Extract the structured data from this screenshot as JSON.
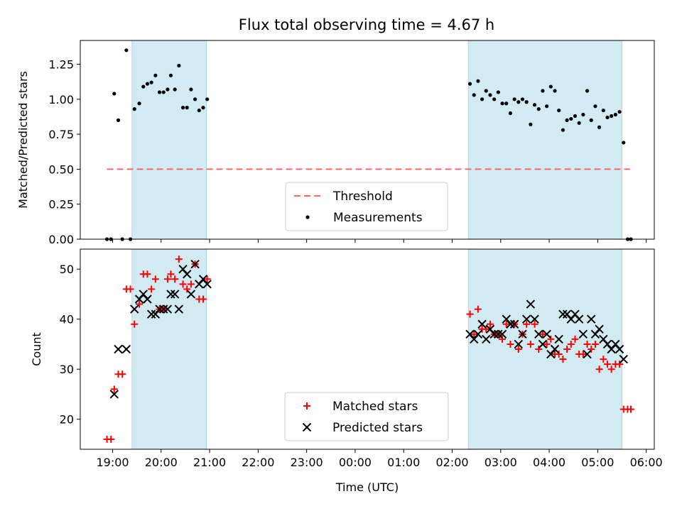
{
  "chart_data": [
    {
      "type": "scatter",
      "title": "Flux total observing time = 4.67 h",
      "ylabel": "Matched/Predicted stars",
      "xlabel": "",
      "ylim": [
        0,
        1.42
      ],
      "xlim": [
        "18:20",
        "06:10"
      ],
      "x_unit": "time (UTC), hours after 00:00; values after midnight are next day",
      "yticks": [
        "0.00",
        "0.25",
        "0.50",
        "0.75",
        "1.00",
        "1.25"
      ],
      "grid": false,
      "legend_position": "bottom-center",
      "shaded_regions": [
        {
          "start": "19:24",
          "end": "20:56",
          "color": "#add8e6"
        },
        {
          "start": "02:20",
          "end": "05:30",
          "color": "#add8e6"
        }
      ],
      "threshold": {
        "name": "Threshold",
        "value": 0.5,
        "start": "18:53",
        "end": "05:40",
        "color": "#ff6666",
        "style": "dashed"
      },
      "series": [
        {
          "name": "Measurements",
          "color": "#000000",
          "marker": "dot",
          "points": [
            [
              "18:53",
              0.0
            ],
            [
              "18:58",
              0.0
            ],
            [
              "19:02",
              1.04
            ],
            [
              "19:07",
              0.85
            ],
            [
              "19:12",
              0.0
            ],
            [
              "19:17",
              1.35
            ],
            [
              "19:22",
              0.0
            ],
            [
              "19:27",
              0.93
            ],
            [
              "19:33",
              0.97
            ],
            [
              "19:38",
              1.09
            ],
            [
              "19:43",
              1.11
            ],
            [
              "19:48",
              1.12
            ],
            [
              "19:53",
              1.17
            ],
            [
              "19:58",
              1.05
            ],
            [
              "20:03",
              1.05
            ],
            [
              "20:08",
              1.07
            ],
            [
              "20:12",
              1.17
            ],
            [
              "20:17",
              1.07
            ],
            [
              "20:22",
              1.24
            ],
            [
              "20:27",
              0.94
            ],
            [
              "20:32",
              0.94
            ],
            [
              "20:37",
              1.07
            ],
            [
              "20:42",
              1.0
            ],
            [
              "20:47",
              0.92
            ],
            [
              "20:52",
              0.94
            ],
            [
              "20:57",
              1.0
            ],
            [
              "02:22",
              1.11
            ],
            [
              "02:27",
              1.03
            ],
            [
              "02:32",
              1.13
            ],
            [
              "02:37",
              1.0
            ],
            [
              "02:42",
              1.06
            ],
            [
              "02:47",
              1.03
            ],
            [
              "02:52",
              1.0
            ],
            [
              "02:57",
              1.05
            ],
            [
              "03:02",
              0.97
            ],
            [
              "03:07",
              0.97
            ],
            [
              "03:12",
              0.9
            ],
            [
              "03:17",
              1.0
            ],
            [
              "03:22",
              0.98
            ],
            [
              "03:27",
              1.0
            ],
            [
              "03:32",
              0.98
            ],
            [
              "03:37",
              0.82
            ],
            [
              "03:42",
              0.96
            ],
            [
              "03:47",
              0.93
            ],
            [
              "03:52",
              1.06
            ],
            [
              "03:57",
              0.95
            ],
            [
              "04:02",
              1.09
            ],
            [
              "04:07",
              1.06
            ],
            [
              "04:12",
              0.92
            ],
            [
              "04:17",
              0.78
            ],
            [
              "04:22",
              0.85
            ],
            [
              "04:27",
              0.86
            ],
            [
              "04:32",
              0.88
            ],
            [
              "04:37",
              0.83
            ],
            [
              "04:42",
              0.89
            ],
            [
              "04:47",
              1.06
            ],
            [
              "04:52",
              0.85
            ],
            [
              "04:57",
              0.95
            ],
            [
              "05:02",
              0.8
            ],
            [
              "05:07",
              0.92
            ],
            [
              "05:12",
              0.87
            ],
            [
              "05:17",
              0.88
            ],
            [
              "05:22",
              0.89
            ],
            [
              "05:27",
              0.91
            ],
            [
              "05:32",
              0.69
            ],
            [
              "05:37",
              0.0
            ],
            [
              "05:41",
              0.0
            ]
          ]
        }
      ]
    },
    {
      "type": "scatter",
      "title": "",
      "ylabel": "Count",
      "xlabel": "Time (UTC)",
      "ylim": [
        14,
        54
      ],
      "xlim": [
        "18:20",
        "06:10"
      ],
      "yticks": [
        "20",
        "30",
        "40",
        "50"
      ],
      "xticks": [
        "19:00",
        "20:00",
        "21:00",
        "22:00",
        "23:00",
        "00:00",
        "01:00",
        "02:00",
        "03:00",
        "04:00",
        "05:00",
        "06:00"
      ],
      "grid": false,
      "legend_position": "bottom-center",
      "shaded_regions": [
        {
          "start": "19:24",
          "end": "20:56",
          "color": "#add8e6"
        },
        {
          "start": "02:20",
          "end": "05:30",
          "color": "#add8e6"
        }
      ],
      "series": [
        {
          "name": "Matched stars",
          "color": "#ff0000",
          "marker": "plus",
          "points": [
            [
              "18:53",
              16
            ],
            [
              "18:58",
              16
            ],
            [
              "19:02",
              26
            ],
            [
              "19:07",
              29
            ],
            [
              "19:12",
              29
            ],
            [
              "19:17",
              46
            ],
            [
              "19:22",
              46
            ],
            [
              "19:27",
              39
            ],
            [
              "19:33",
              43
            ],
            [
              "19:38",
              49
            ],
            [
              "19:43",
              49
            ],
            [
              "19:48",
              46
            ],
            [
              "19:53",
              48
            ],
            [
              "19:58",
              42
            ],
            [
              "20:03",
              42
            ],
            [
              "20:08",
              48
            ],
            [
              "20:12",
              49
            ],
            [
              "20:17",
              48
            ],
            [
              "20:22",
              52
            ],
            [
              "20:27",
              47
            ],
            [
              "20:32",
              46
            ],
            [
              "20:37",
              47
            ],
            [
              "20:42",
              51
            ],
            [
              "20:47",
              44
            ],
            [
              "20:52",
              44
            ],
            [
              "20:57",
              48
            ],
            [
              "02:22",
              41
            ],
            [
              "02:27",
              37
            ],
            [
              "02:32",
              42
            ],
            [
              "02:37",
              38
            ],
            [
              "02:42",
              38
            ],
            [
              "02:47",
              39
            ],
            [
              "02:52",
              37
            ],
            [
              "02:57",
              37
            ],
            [
              "03:02",
              36
            ],
            [
              "03:07",
              39
            ],
            [
              "03:12",
              35
            ],
            [
              "03:17",
              39
            ],
            [
              "03:22",
              34
            ],
            [
              "03:27",
              37
            ],
            [
              "03:32",
              39
            ],
            [
              "03:37",
              35
            ],
            [
              "03:42",
              39
            ],
            [
              "03:47",
              34
            ],
            [
              "03:52",
              37
            ],
            [
              "03:57",
              35
            ],
            [
              "04:02",
              36
            ],
            [
              "04:07",
              33
            ],
            [
              "04:12",
              33
            ],
            [
              "04:17",
              32
            ],
            [
              "04:22",
              34
            ],
            [
              "04:27",
              35
            ],
            [
              "04:32",
              36
            ],
            [
              "04:37",
              33
            ],
            [
              "04:42",
              33
            ],
            [
              "04:47",
              35
            ],
            [
              "04:52",
              34
            ],
            [
              "04:57",
              35
            ],
            [
              "05:02",
              30
            ],
            [
              "05:07",
              32
            ],
            [
              "05:12",
              31
            ],
            [
              "05:17",
              30
            ],
            [
              "05:22",
              31
            ],
            [
              "05:27",
              31
            ],
            [
              "05:32",
              22
            ],
            [
              "05:37",
              22
            ],
            [
              "05:41",
              22
            ]
          ]
        },
        {
          "name": "Predicted stars",
          "color": "#000000",
          "marker": "x",
          "points": [
            [
              "19:02",
              25
            ],
            [
              "19:07",
              34
            ],
            [
              "19:17",
              34
            ],
            [
              "19:27",
              42
            ],
            [
              "19:33",
              44
            ],
            [
              "19:38",
              45
            ],
            [
              "19:43",
              44
            ],
            [
              "19:48",
              41
            ],
            [
              "19:53",
              41
            ],
            [
              "19:58",
              42
            ],
            [
              "20:03",
              42
            ],
            [
              "20:08",
              42
            ],
            [
              "20:12",
              45
            ],
            [
              "20:17",
              45
            ],
            [
              "20:22",
              42
            ],
            [
              "20:27",
              50
            ],
            [
              "20:32",
              49
            ],
            [
              "20:37",
              45
            ],
            [
              "20:42",
              51
            ],
            [
              "20:47",
              47
            ],
            [
              "20:52",
              48
            ],
            [
              "20:57",
              47
            ],
            [
              "02:22",
              37
            ],
            [
              "02:27",
              36
            ],
            [
              "02:32",
              37
            ],
            [
              "02:37",
              39
            ],
            [
              "02:42",
              36
            ],
            [
              "02:47",
              38
            ],
            [
              "02:52",
              37
            ],
            [
              "02:57",
              37
            ],
            [
              "03:02",
              37
            ],
            [
              "03:07",
              40
            ],
            [
              "03:12",
              39
            ],
            [
              "03:17",
              39
            ],
            [
              "03:22",
              35
            ],
            [
              "03:27",
              37
            ],
            [
              "03:32",
              40
            ],
            [
              "03:37",
              43
            ],
            [
              "03:42",
              40
            ],
            [
              "03:47",
              37
            ],
            [
              "03:52",
              35
            ],
            [
              "03:57",
              37
            ],
            [
              "04:02",
              33
            ],
            [
              "04:07",
              34
            ],
            [
              "04:12",
              36
            ],
            [
              "04:17",
              41
            ],
            [
              "04:22",
              41
            ],
            [
              "04:27",
              40
            ],
            [
              "04:32",
              41
            ],
            [
              "04:37",
              40
            ],
            [
              "04:42",
              37
            ],
            [
              "04:47",
              33
            ],
            [
              "04:52",
              40
            ],
            [
              "04:57",
              37
            ],
            [
              "05:02",
              38
            ],
            [
              "05:07",
              36
            ],
            [
              "05:12",
              35
            ],
            [
              "05:17",
              34
            ],
            [
              "05:22",
              35
            ],
            [
              "05:27",
              34
            ],
            [
              "05:32",
              32
            ]
          ]
        }
      ]
    }
  ]
}
